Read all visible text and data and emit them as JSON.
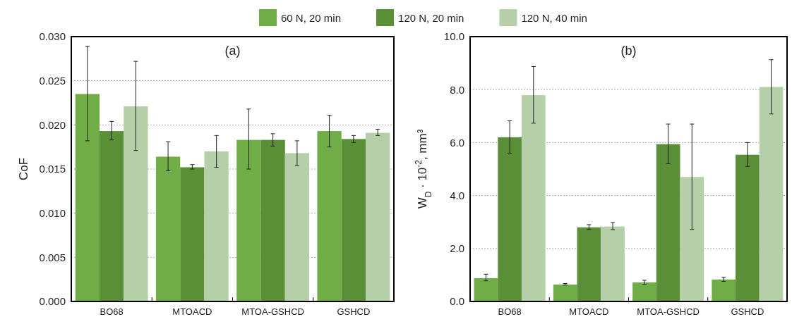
{
  "chart_data": [
    {
      "type": "bar",
      "title": "(a)",
      "ylabel": "CoF",
      "categories": [
        "BO68",
        "MTOACD",
        "MTOA-GSHCD",
        "GSHCD"
      ],
      "legend": "top",
      "grid": "y",
      "ylim": [
        0,
        0.03
      ],
      "yticks": [
        {
          "value": 0,
          "label": "0.000"
        },
        {
          "value": 0.005,
          "label": "0.005"
        },
        {
          "value": 0.01,
          "label": "0.010"
        },
        {
          "value": 0.015,
          "label": "0.015"
        },
        {
          "value": 0.02,
          "label": "0.020"
        },
        {
          "value": 0.025,
          "label": "0.025"
        },
        {
          "value": 0.03,
          "label": "0.030"
        }
      ],
      "series": [
        {
          "name": "60 N, 20 min",
          "color": "#70ad47",
          "values": [
            0.0235,
            0.0164,
            0.0183,
            0.0193
          ],
          "errors": [
            [
              0.0182,
              0.0289
            ],
            [
              0.0148,
              0.0181
            ],
            [
              0.015,
              0.0218
            ],
            [
              0.0175,
              0.0211
            ]
          ]
        },
        {
          "name": "120 N, 20 min",
          "color": "#5a8f38",
          "values": [
            0.0193,
            0.0152,
            0.0183,
            0.0184
          ],
          "errors": [
            [
              0.0183,
              0.0204
            ],
            [
              0.015,
              0.0155
            ],
            [
              0.0176,
              0.019
            ],
            [
              0.018,
              0.0188
            ]
          ]
        },
        {
          "name": "120 N, 40 min",
          "color": "#b5d0a8",
          "values": [
            0.0221,
            0.017,
            0.0168,
            0.0191
          ],
          "errors": [
            [
              0.0171,
              0.0272
            ],
            [
              0.0152,
              0.0188
            ],
            [
              0.0154,
              0.0182
            ],
            [
              0.0188,
              0.0195
            ]
          ]
        }
      ]
    },
    {
      "type": "bar",
      "title": "(b)",
      "ylabel": "W$_{D}$ · 10$^{-2}$, mm³",
      "categories": [
        "BO68",
        "MTOACD",
        "MTOA-GSHCD",
        "GSHCD"
      ],
      "grid": "y",
      "ylim": [
        0,
        10
      ],
      "yticks": [
        {
          "value": 0,
          "label": "0.0"
        },
        {
          "value": 2,
          "label": "2.0"
        },
        {
          "value": 4,
          "label": "4.0"
        },
        {
          "value": 6,
          "label": "6.0"
        },
        {
          "value": 8,
          "label": "8.0"
        },
        {
          "value": 10,
          "label": "10.0"
        }
      ],
      "series": [
        {
          "color": "#70ad47",
          "values": [
            0.88,
            0.64,
            0.72,
            0.83
          ],
          "errors": [
            [
              0.78,
              1.03
            ],
            [
              0.62,
              0.68
            ],
            [
              0.65,
              0.8
            ],
            [
              0.76,
              0.92
            ]
          ]
        },
        {
          "color": "#5a8f38",
          "values": [
            6.2,
            2.8,
            5.94,
            5.54
          ],
          "errors": [
            [
              5.6,
              6.82
            ],
            [
              2.72,
              2.9
            ],
            [
              5.2,
              6.7
            ],
            [
              5.1,
              6.0
            ]
          ]
        },
        {
          "color": "#b5d0a8",
          "values": [
            7.79,
            2.83,
            4.7,
            8.1
          ],
          "errors": [
            [
              6.73,
              8.87
            ],
            [
              2.71,
              2.98
            ],
            [
              2.72,
              6.7
            ],
            [
              7.08,
              9.13
            ]
          ]
        }
      ]
    }
  ]
}
